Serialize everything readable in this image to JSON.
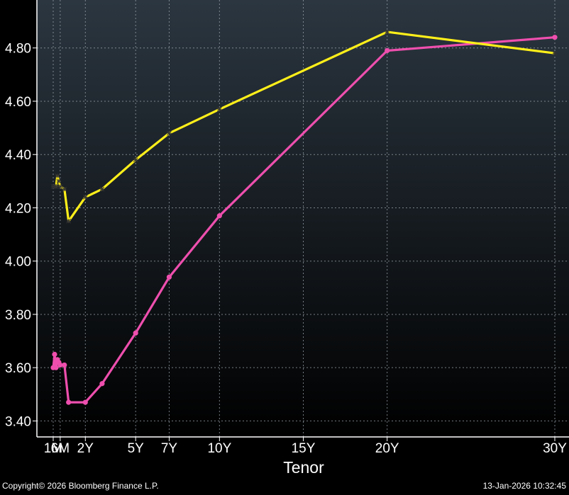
{
  "chart_data": {
    "type": "line",
    "xlabel": "Tenor",
    "x_ticks": [
      {
        "label": "1M",
        "t": 0.0833
      },
      {
        "label": "6M",
        "t": 0.5
      },
      {
        "label": "2Y",
        "t": 2
      },
      {
        "label": "5Y",
        "t": 5
      },
      {
        "label": "7Y",
        "t": 7
      },
      {
        "label": "10Y",
        "t": 10
      },
      {
        "label": "15Y",
        "t": 15
      },
      {
        "label": "20Y",
        "t": 20
      },
      {
        "label": "30Y",
        "t": 30
      }
    ],
    "y_ticks": [
      "3.40",
      "3.60",
      "3.80",
      "4.00",
      "4.20",
      "4.40",
      "4.60",
      "4.80"
    ],
    "ylim": [
      3.34,
      4.98
    ],
    "grid": true,
    "colors": {
      "background_top": "#2b3640",
      "background_bottom": "#000000",
      "grid": "#9aa3ab",
      "series_1": "#ffef1a",
      "series_2": "#ee4fae"
    },
    "series": [
      {
        "marker": "asterisk",
        "points": [
          [
            0.0833,
            4.28
          ],
          [
            0.1667,
            4.28
          ],
          [
            0.25,
            4.28
          ],
          [
            0.3333,
            4.32
          ],
          [
            0.4167,
            4.3
          ],
          [
            0.5,
            4.28
          ],
          [
            0.75,
            4.27
          ],
          [
            1,
            4.15
          ],
          [
            2,
            4.24
          ],
          [
            3,
            4.27
          ],
          [
            5,
            4.38
          ],
          [
            7,
            4.48
          ],
          [
            10,
            4.57
          ],
          [
            20,
            4.86
          ],
          [
            30,
            4.78
          ]
        ]
      },
      {
        "marker": "dot",
        "points": [
          [
            0.0833,
            3.6
          ],
          [
            0.1667,
            3.65
          ],
          [
            0.25,
            3.6
          ],
          [
            0.3333,
            3.63
          ],
          [
            0.4167,
            3.62
          ],
          [
            0.5,
            3.61
          ],
          [
            0.75,
            3.61
          ],
          [
            1,
            3.47
          ],
          [
            2,
            3.47
          ],
          [
            3,
            3.54
          ],
          [
            5,
            3.73
          ],
          [
            7,
            3.94
          ],
          [
            10,
            4.17
          ],
          [
            20,
            4.79
          ],
          [
            30,
            4.84
          ]
        ]
      }
    ]
  },
  "footer": {
    "copyright": "Copyright© 2026 Bloomberg Finance L.P.",
    "timestamp": "13-Jan-2026 10:32:45"
  }
}
